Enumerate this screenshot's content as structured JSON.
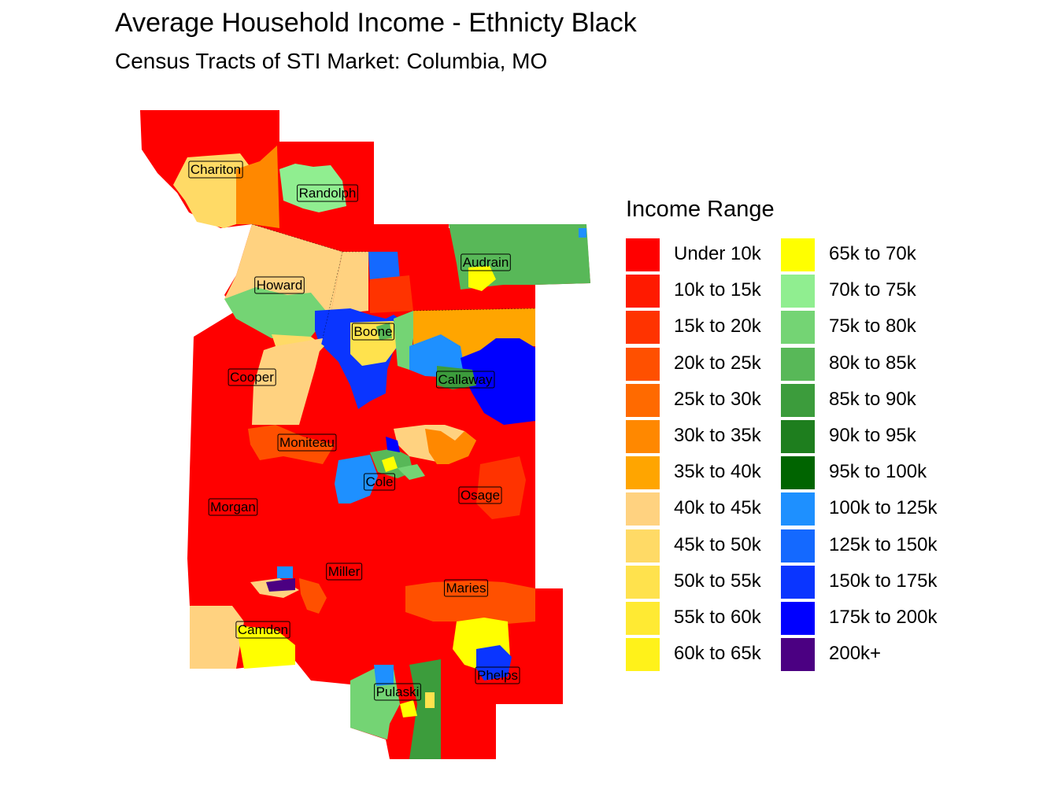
{
  "header": {
    "title": "Average Household Income - Ethnicty Black",
    "subtitle": "Census Tracts of STI Market: Columbia, MO"
  },
  "legend": {
    "title": "Income Range",
    "items": [
      {
        "label": "Under 10k",
        "color": "#FF0000"
      },
      {
        "label": "10k to 15k",
        "color": "#FF1A00"
      },
      {
        "label": "15k to 20k",
        "color": "#FF3300"
      },
      {
        "label": "20k to 25k",
        "color": "#FF5000"
      },
      {
        "label": "25k to 30k",
        "color": "#FF6A00"
      },
      {
        "label": "30k to 35k",
        "color": "#FF8800"
      },
      {
        "label": "35k to 40k",
        "color": "#FFA500"
      },
      {
        "label": "40k to 45k",
        "color": "#FFD280"
      },
      {
        "label": "45k to 50k",
        "color": "#FFDA66"
      },
      {
        "label": "50k to 55k",
        "color": "#FFE24D"
      },
      {
        "label": "55k to 60k",
        "color": "#FFEA33"
      },
      {
        "label": "60k to 65k",
        "color": "#FFF21A"
      },
      {
        "label": "65k to 70k",
        "color": "#FFFF00"
      },
      {
        "label": "70k to 75k",
        "color": "#90EE90"
      },
      {
        "label": "75k to 80k",
        "color": "#74D474"
      },
      {
        "label": "80k to 85k",
        "color": "#58B858"
      },
      {
        "label": "85k to 90k",
        "color": "#3C9C3C"
      },
      {
        "label": "90k to 95k",
        "color": "#1E7E1E"
      },
      {
        "label": "95k to 100k",
        "color": "#006400"
      },
      {
        "label": "100k to 125k",
        "color": "#1E90FF"
      },
      {
        "label": "125k to 150k",
        "color": "#1469FF"
      },
      {
        "label": "150k to 175k",
        "color": "#0A35FF"
      },
      {
        "label": "175k to 200k",
        "color": "#0000FF"
      },
      {
        "label": "200k+",
        "color": "#4B0082"
      }
    ]
  },
  "map": {
    "counties": [
      {
        "name": "Chariton"
      },
      {
        "name": "Randolph"
      },
      {
        "name": "Audrain"
      },
      {
        "name": "Howard"
      },
      {
        "name": "Boone"
      },
      {
        "name": "Cooper"
      },
      {
        "name": "Callaway"
      },
      {
        "name": "Moniteau"
      },
      {
        "name": "Cole"
      },
      {
        "name": "Osage"
      },
      {
        "name": "Morgan"
      },
      {
        "name": "Miller"
      },
      {
        "name": "Maries"
      },
      {
        "name": "Camden"
      },
      {
        "name": "Phelps"
      },
      {
        "name": "Pulaski"
      }
    ]
  }
}
